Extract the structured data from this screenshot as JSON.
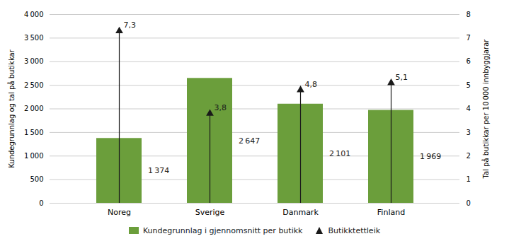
{
  "chart_data": {
    "type": "bar",
    "categories": [
      "Noreg",
      "Sverige",
      "Danmark",
      "Finland"
    ],
    "ylabel": "Kundegrunnlag og tal på butikkar",
    "y2label": "Tal på butikkar per 10 000 innbyggjarar",
    "series": [
      {
        "name": "Kundegrunnlag i gjennomsnitt per butikk",
        "type": "bar",
        "color": "#6b9e3b",
        "values": [
          1374,
          2647,
          2101,
          1969
        ],
        "value_labels": [
          "1 374",
          "2 647",
          "2 101",
          "1 969"
        ]
      },
      {
        "name": "Butikktettleik",
        "type": "arrow",
        "color": "#1a1a1a",
        "axis": "y2",
        "values": [
          7.3,
          3.8,
          4.8,
          5.1
        ],
        "value_labels": [
          "7,3",
          "3,8",
          "4,8",
          "5,1"
        ]
      }
    ],
    "ylim": [
      0,
      4000
    ],
    "yticks": [
      0,
      500,
      {
        "value": 1000,
        "label": "1 000"
      },
      {
        "value": 1500,
        "label": "1 500"
      },
      {
        "value": 2000,
        "label": "2 000"
      },
      {
        "value": 2500,
        "label": "2 500"
      },
      {
        "value": 3000,
        "label": "3 000"
      },
      {
        "value": 3500,
        "label": "3 500"
      },
      {
        "value": 4000,
        "label": "4 000"
      }
    ],
    "y2lim": [
      0,
      8
    ],
    "y2ticks": [
      0,
      1,
      2,
      3,
      4,
      5,
      6,
      7,
      8
    ],
    "grid": true,
    "legend": "bottom",
    "data_labels": true
  }
}
